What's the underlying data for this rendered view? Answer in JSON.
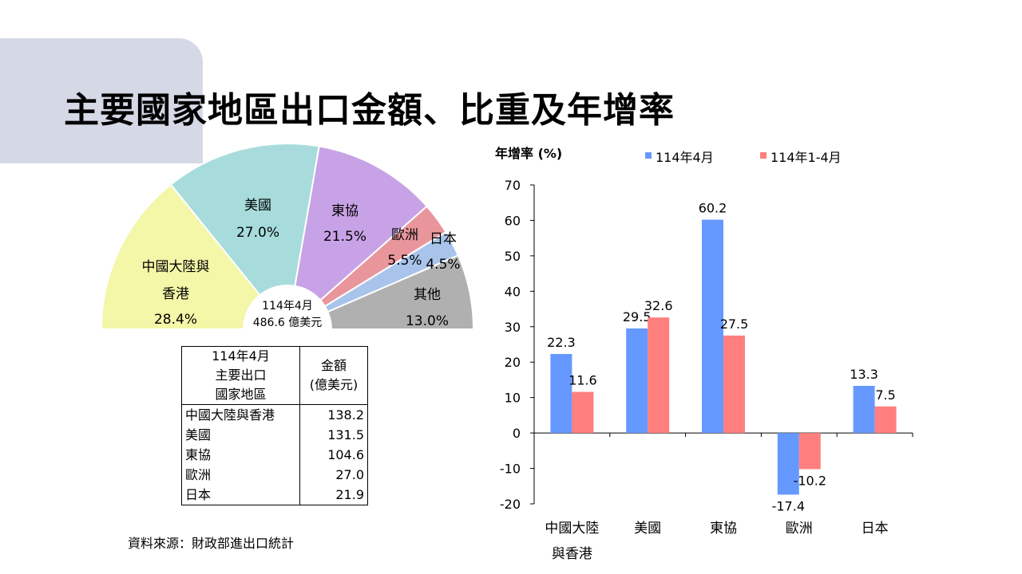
{
  "slide": {
    "title": "主要國家地區出口金額、比重及年增率",
    "source": "資料來源：財政部進出口統計"
  },
  "pie": {
    "center_line1": "114年4月",
    "center_line2": "486.6  億美元"
  },
  "table": {
    "header_left": [
      "114年4月",
      "主要出口",
      "國家地區"
    ],
    "header_right": [
      "金額",
      "(億美元)"
    ],
    "rows": [
      {
        "name": "中國大陸與香港",
        "value": "138.2"
      },
      {
        "name": "美國",
        "value": "131.5"
      },
      {
        "name": "東協",
        "value": "104.6"
      },
      {
        "name": "歐洲",
        "value": "27.0"
      },
      {
        "name": "日本",
        "value": "21.9"
      }
    ]
  },
  "chart_data": [
    {
      "type": "pie",
      "variant": "semicircle-donut",
      "slices": [
        {
          "label": [
            "中國大陸與",
            "香港"
          ],
          "value": 28.4,
          "display": "28.4%",
          "color": "#f4f6a8"
        },
        {
          "label": [
            "美國"
          ],
          "value": 27.0,
          "display": "27.0%",
          "color": "#a8dcdc"
        },
        {
          "label": [
            "東協"
          ],
          "value": 21.5,
          "display": "21.5%",
          "color": "#c8a2e6"
        },
        {
          "label": [
            "歐洲"
          ],
          "value": 5.5,
          "display": "5.5%",
          "color": "#e8969c"
        },
        {
          "label": [
            "日本"
          ],
          "value": 4.5,
          "display": "4.5%",
          "color": "#a8c4ea"
        },
        {
          "label": [
            "其他"
          ],
          "value": 13.0,
          "display": "13.0%",
          "color": "#b0b0b0"
        }
      ]
    },
    {
      "type": "bar",
      "ylabel": "年增率 (%)",
      "ylim": [
        -20,
        70
      ],
      "yticks": [
        -20,
        -10,
        0,
        10,
        20,
        30,
        40,
        50,
        60,
        70
      ],
      "categories": [
        [
          "中國大陸",
          "與香港"
        ],
        [
          "美國"
        ],
        [
          "東協"
        ],
        [
          "歐洲"
        ],
        [
          "日本"
        ]
      ],
      "series": [
        {
          "name": "114年4月",
          "color": "#6699ff",
          "values": [
            22.3,
            29.5,
            60.2,
            -17.4,
            13.3
          ]
        },
        {
          "name": "114年1-4月",
          "color": "#ff7f7f",
          "values": [
            11.6,
            32.6,
            27.5,
            -10.2,
            7.5
          ]
        }
      ],
      "legend": "top"
    }
  ]
}
